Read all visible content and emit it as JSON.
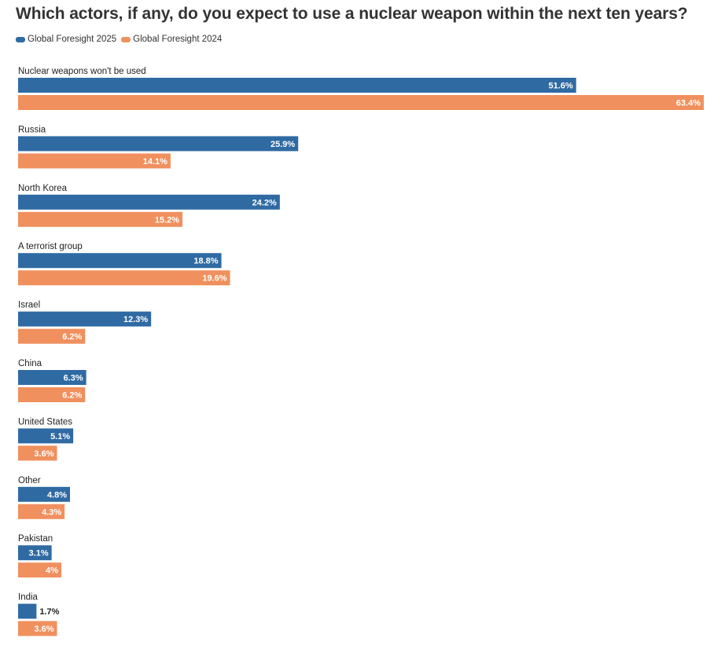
{
  "title": "Which actors, if any, do you expect to use a nuclear weapon within the next ten years?",
  "legend": [
    {
      "name": "Global Foresight 2025",
      "color": "#2f6aa3"
    },
    {
      "name": "Global Foresight 2024",
      "color": "#f0905e"
    }
  ],
  "chart_data": {
    "type": "bar",
    "orientation": "horizontal",
    "title": "Which actors, if any, do you expect to use a nuclear weapon within the next ten years?",
    "categories": [
      "Nuclear weapons won't be used",
      "Russia",
      "North Korea",
      "A terrorist group",
      "Israel",
      "China",
      "United States",
      "Other",
      "Pakistan",
      "India"
    ],
    "series": [
      {
        "name": "Global Foresight 2025",
        "color": "#2f6aa3",
        "values": [
          51.6,
          25.9,
          24.2,
          18.8,
          12.3,
          6.3,
          5.1,
          4.8,
          3.1,
          1.7
        ],
        "labels": [
          "51.6%",
          "25.9%",
          "24.2%",
          "18.8%",
          "12.3%",
          "6.3%",
          "5.1%",
          "4.8%",
          "3.1%",
          "1.7%"
        ]
      },
      {
        "name": "Global Foresight 2024",
        "color": "#f0905e",
        "values": [
          63.4,
          14.1,
          15.2,
          19.6,
          6.2,
          6.2,
          3.6,
          4.3,
          4,
          3.6
        ],
        "labels": [
          "63.4%",
          "14.1%",
          "15.2%",
          "19.6%",
          "6.2%",
          "6.2%",
          "3.6%",
          "4.3%",
          "4%",
          "3.6%"
        ]
      }
    ],
    "xlim": [
      0,
      63.4
    ],
    "grid": false,
    "legend_position": "top-left"
  }
}
